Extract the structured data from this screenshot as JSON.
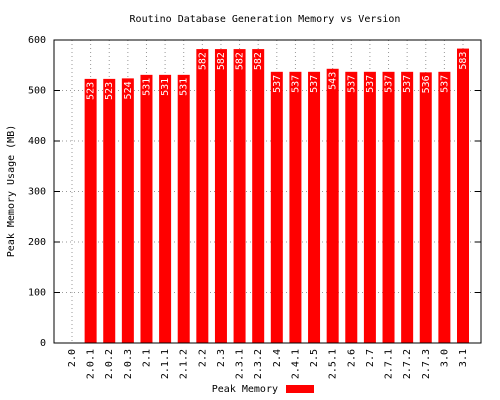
{
  "chart_data": {
    "type": "bar",
    "title": "Routino Database Generation Memory vs Version",
    "y_label": "Peak Memory Usage (MB)",
    "categories": [
      "2.0",
      "2.0.1",
      "2.0.2",
      "2.0.3",
      "2.1",
      "2.1.1",
      "2.1.2",
      "2.2",
      "2.3",
      "2.3.1",
      "2.3.2",
      "2.4",
      "2.4.1",
      "2.5",
      "2.5.1",
      "2.6",
      "2.7",
      "2.7.1",
      "2.7.2",
      "2.7.3",
      "3.0",
      "3.1"
    ],
    "series": [
      {
        "name": "Peak Memory",
        "color": "#ff0000",
        "values": [
          null,
          523,
          523,
          524,
          531,
          531,
          531,
          582,
          582,
          582,
          582,
          537,
          537,
          537,
          543,
          537,
          537,
          537,
          537,
          536,
          537,
          583
        ]
      }
    ],
    "ylim": [
      0,
      600
    ],
    "yticks": [
      0,
      100,
      200,
      300,
      400,
      500,
      600
    ],
    "grid": true,
    "legend": "bottom"
  }
}
